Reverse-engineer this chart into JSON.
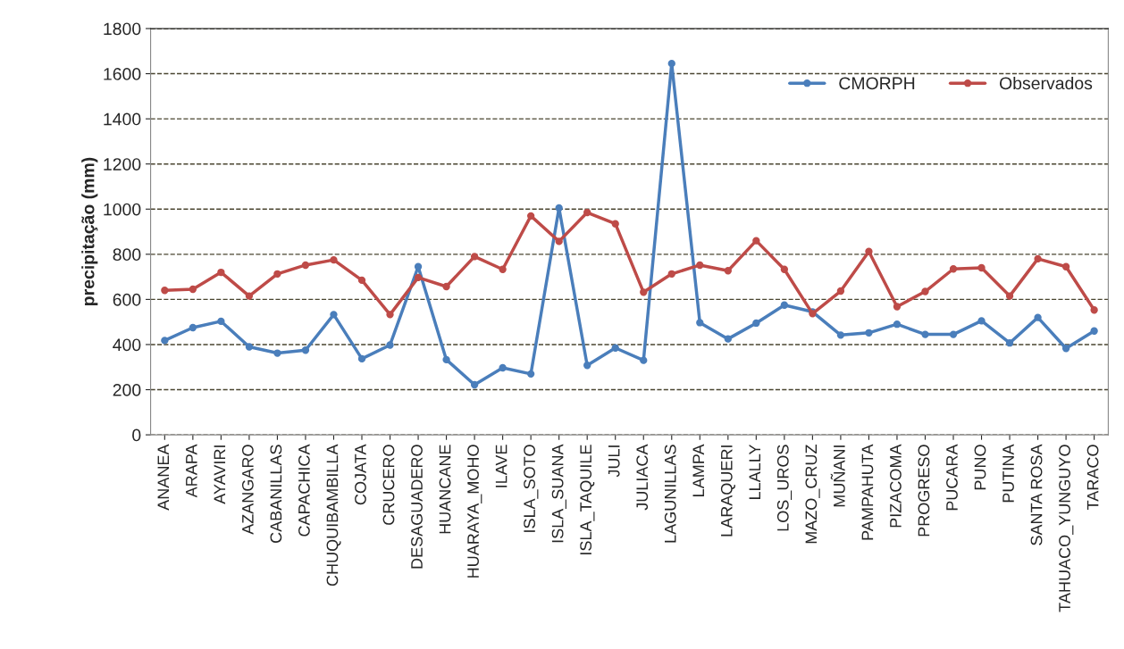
{
  "chart_data": {
    "type": "line",
    "ylabel": "precipitação (mm)",
    "categories": [
      "ANANEA",
      "ARAPA",
      "AYAVIRI",
      "AZANGARO",
      "CABANILLAS",
      "CAPACHICA",
      "CHUQUIBAMBILLA",
      "COJATA",
      "CRUCERO",
      "DESAGUADERO",
      "HUANCANE",
      "HUARAYA_MOHO",
      "ILAVE",
      "ISLA_SOTO",
      "ISLA_SUANA",
      "ISLA_TAQUILE",
      "JULI",
      "JULIACA",
      "LAGUNILLAS",
      "LAMPA",
      "LARAQUERI",
      "LLALLY",
      "LOS_UROS",
      "MAZO_CRUZ",
      "MUÑANI",
      "PAMPAHUTA",
      "PIZACOMA",
      "PROGRESO",
      "PUCARA",
      "PUNO",
      "PUTINA",
      "SANTA ROSA",
      "TAHUACO_YUNGUYO",
      "TARACO"
    ],
    "series": [
      {
        "name": "CMORPH",
        "color": "#4a7ebb",
        "values": [
          418,
          475,
          503,
          390,
          362,
          375,
          533,
          337,
          398,
          745,
          333,
          222,
          297,
          270,
          1005,
          308,
          385,
          330,
          1645,
          497,
          425,
          495,
          575,
          545,
          442,
          452,
          490,
          445,
          445,
          505,
          407,
          520,
          383,
          460
        ]
      },
      {
        "name": "Observados",
        "color": "#be4b48",
        "values": [
          640,
          645,
          720,
          615,
          713,
          752,
          775,
          685,
          533,
          697,
          657,
          790,
          733,
          970,
          857,
          985,
          935,
          632,
          713,
          752,
          727,
          860,
          733,
          537,
          637,
          812,
          568,
          635,
          735,
          740,
          615,
          780,
          745,
          553
        ]
      }
    ],
    "ylim": [
      0,
      1800
    ],
    "yticks": [
      0,
      200,
      400,
      600,
      800,
      1000,
      1200,
      1400,
      1600,
      1800
    ],
    "grid": "y",
    "legend": "top right",
    "marker": "circle",
    "line_style": "solid"
  }
}
